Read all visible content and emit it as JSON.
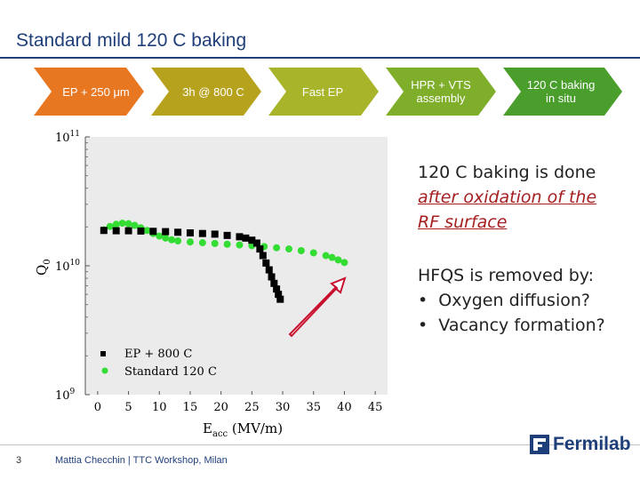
{
  "slide": {
    "title": "Standard mild 120 C baking",
    "page_number": "3",
    "footer": "Mattia Checchin | TTC Workshop, Milan",
    "logo_text": "Fermilab"
  },
  "process_steps": [
    {
      "label": "EP + 250 μm",
      "color": "#e87722"
    },
    {
      "label": "3h @ 800 C",
      "color": "#b7a21e"
    },
    {
      "label": "Fast EP",
      "color": "#a8b429"
    },
    {
      "label": "HPR + VTS assembly",
      "color": "#7fae2b"
    },
    {
      "label": "120 C baking in situ",
      "color": "#4a9e2c"
    }
  ],
  "notes": {
    "line1": "120 C baking is done",
    "line2": "after oxidation of the",
    "line3": "RF surface",
    "hfqs_title": "HFQS is removed by:",
    "bullets": [
      "Oxygen diffusion?",
      "Vacancy formation?"
    ]
  },
  "chart_data": {
    "type": "scatter",
    "xlabel": "E",
    "xlabel_sub": "acc",
    "xlabel_unit": " (MV/m)",
    "ylabel": "Q",
    "ylabel_sub": "0",
    "xlim": [
      -2,
      47
    ],
    "ylim_log10": [
      9,
      11
    ],
    "y_scale": "log",
    "x_ticks": [
      0,
      5,
      10,
      15,
      20,
      25,
      30,
      35,
      40,
      45
    ],
    "y_ticks": [
      {
        "value_log10": 11,
        "base": "10",
        "exp": "11"
      },
      {
        "value_log10": 10,
        "base": "10",
        "exp": "10"
      },
      {
        "value_log10": 9,
        "base": "10",
        "exp": "9"
      }
    ],
    "legend_position": "bottom-left",
    "series": [
      {
        "name": "EP + 800 C",
        "marker": "square",
        "color": "#000000",
        "points": [
          [
            1,
            18800000000.0
          ],
          [
            3,
            18700000000.0
          ],
          [
            5,
            18700000000.0
          ],
          [
            7,
            18600000000.0
          ],
          [
            9,
            18500000000.0
          ],
          [
            11,
            18400000000.0
          ],
          [
            13,
            18200000000.0
          ],
          [
            15,
            18000000000.0
          ],
          [
            17,
            17800000000.0
          ],
          [
            19,
            17600000000.0
          ],
          [
            21,
            17200000000.0
          ],
          [
            23,
            16800000000.0
          ],
          [
            24,
            16400000000.0
          ],
          [
            25,
            15800000000.0
          ],
          [
            25.8,
            15000000000.0
          ],
          [
            26.3,
            13500000000.0
          ],
          [
            26.8,
            12000000000.0
          ],
          [
            27.3,
            10500000000.0
          ],
          [
            27.8,
            9300000000.0
          ],
          [
            28.2,
            8200000000.0
          ],
          [
            28.6,
            7300000000.0
          ],
          [
            29,
            6600000000.0
          ],
          [
            29.3,
            6000000000.0
          ],
          [
            29.6,
            5500000000.0
          ]
        ]
      },
      {
        "name": "Standard 120 C",
        "marker": "circle",
        "color": "#33dd33",
        "points": [
          [
            1,
            19000000000.0
          ],
          [
            2,
            20200000000.0
          ],
          [
            3,
            21000000000.0
          ],
          [
            4,
            21400000000.0
          ],
          [
            5,
            21200000000.0
          ],
          [
            6,
            20600000000.0
          ],
          [
            7,
            19700000000.0
          ],
          [
            8,
            18800000000.0
          ],
          [
            9,
            17800000000.0
          ],
          [
            10,
            17000000000.0
          ],
          [
            11,
            16400000000.0
          ],
          [
            12,
            15900000000.0
          ],
          [
            13,
            15600000000.0
          ],
          [
            15,
            15300000000.0
          ],
          [
            17,
            15100000000.0
          ],
          [
            19,
            14900000000.0
          ],
          [
            21,
            14700000000.0
          ],
          [
            23,
            14500000000.0
          ],
          [
            25,
            14300000000.0
          ],
          [
            27,
            14100000000.0
          ],
          [
            29,
            13800000000.0
          ],
          [
            31,
            13500000000.0
          ],
          [
            33,
            13100000000.0
          ],
          [
            35,
            12600000000.0
          ],
          [
            37,
            12000000000.0
          ],
          [
            38,
            11600000000.0
          ],
          [
            39,
            11100000000.0
          ],
          [
            40,
            10600000000.0
          ]
        ]
      }
    ]
  }
}
